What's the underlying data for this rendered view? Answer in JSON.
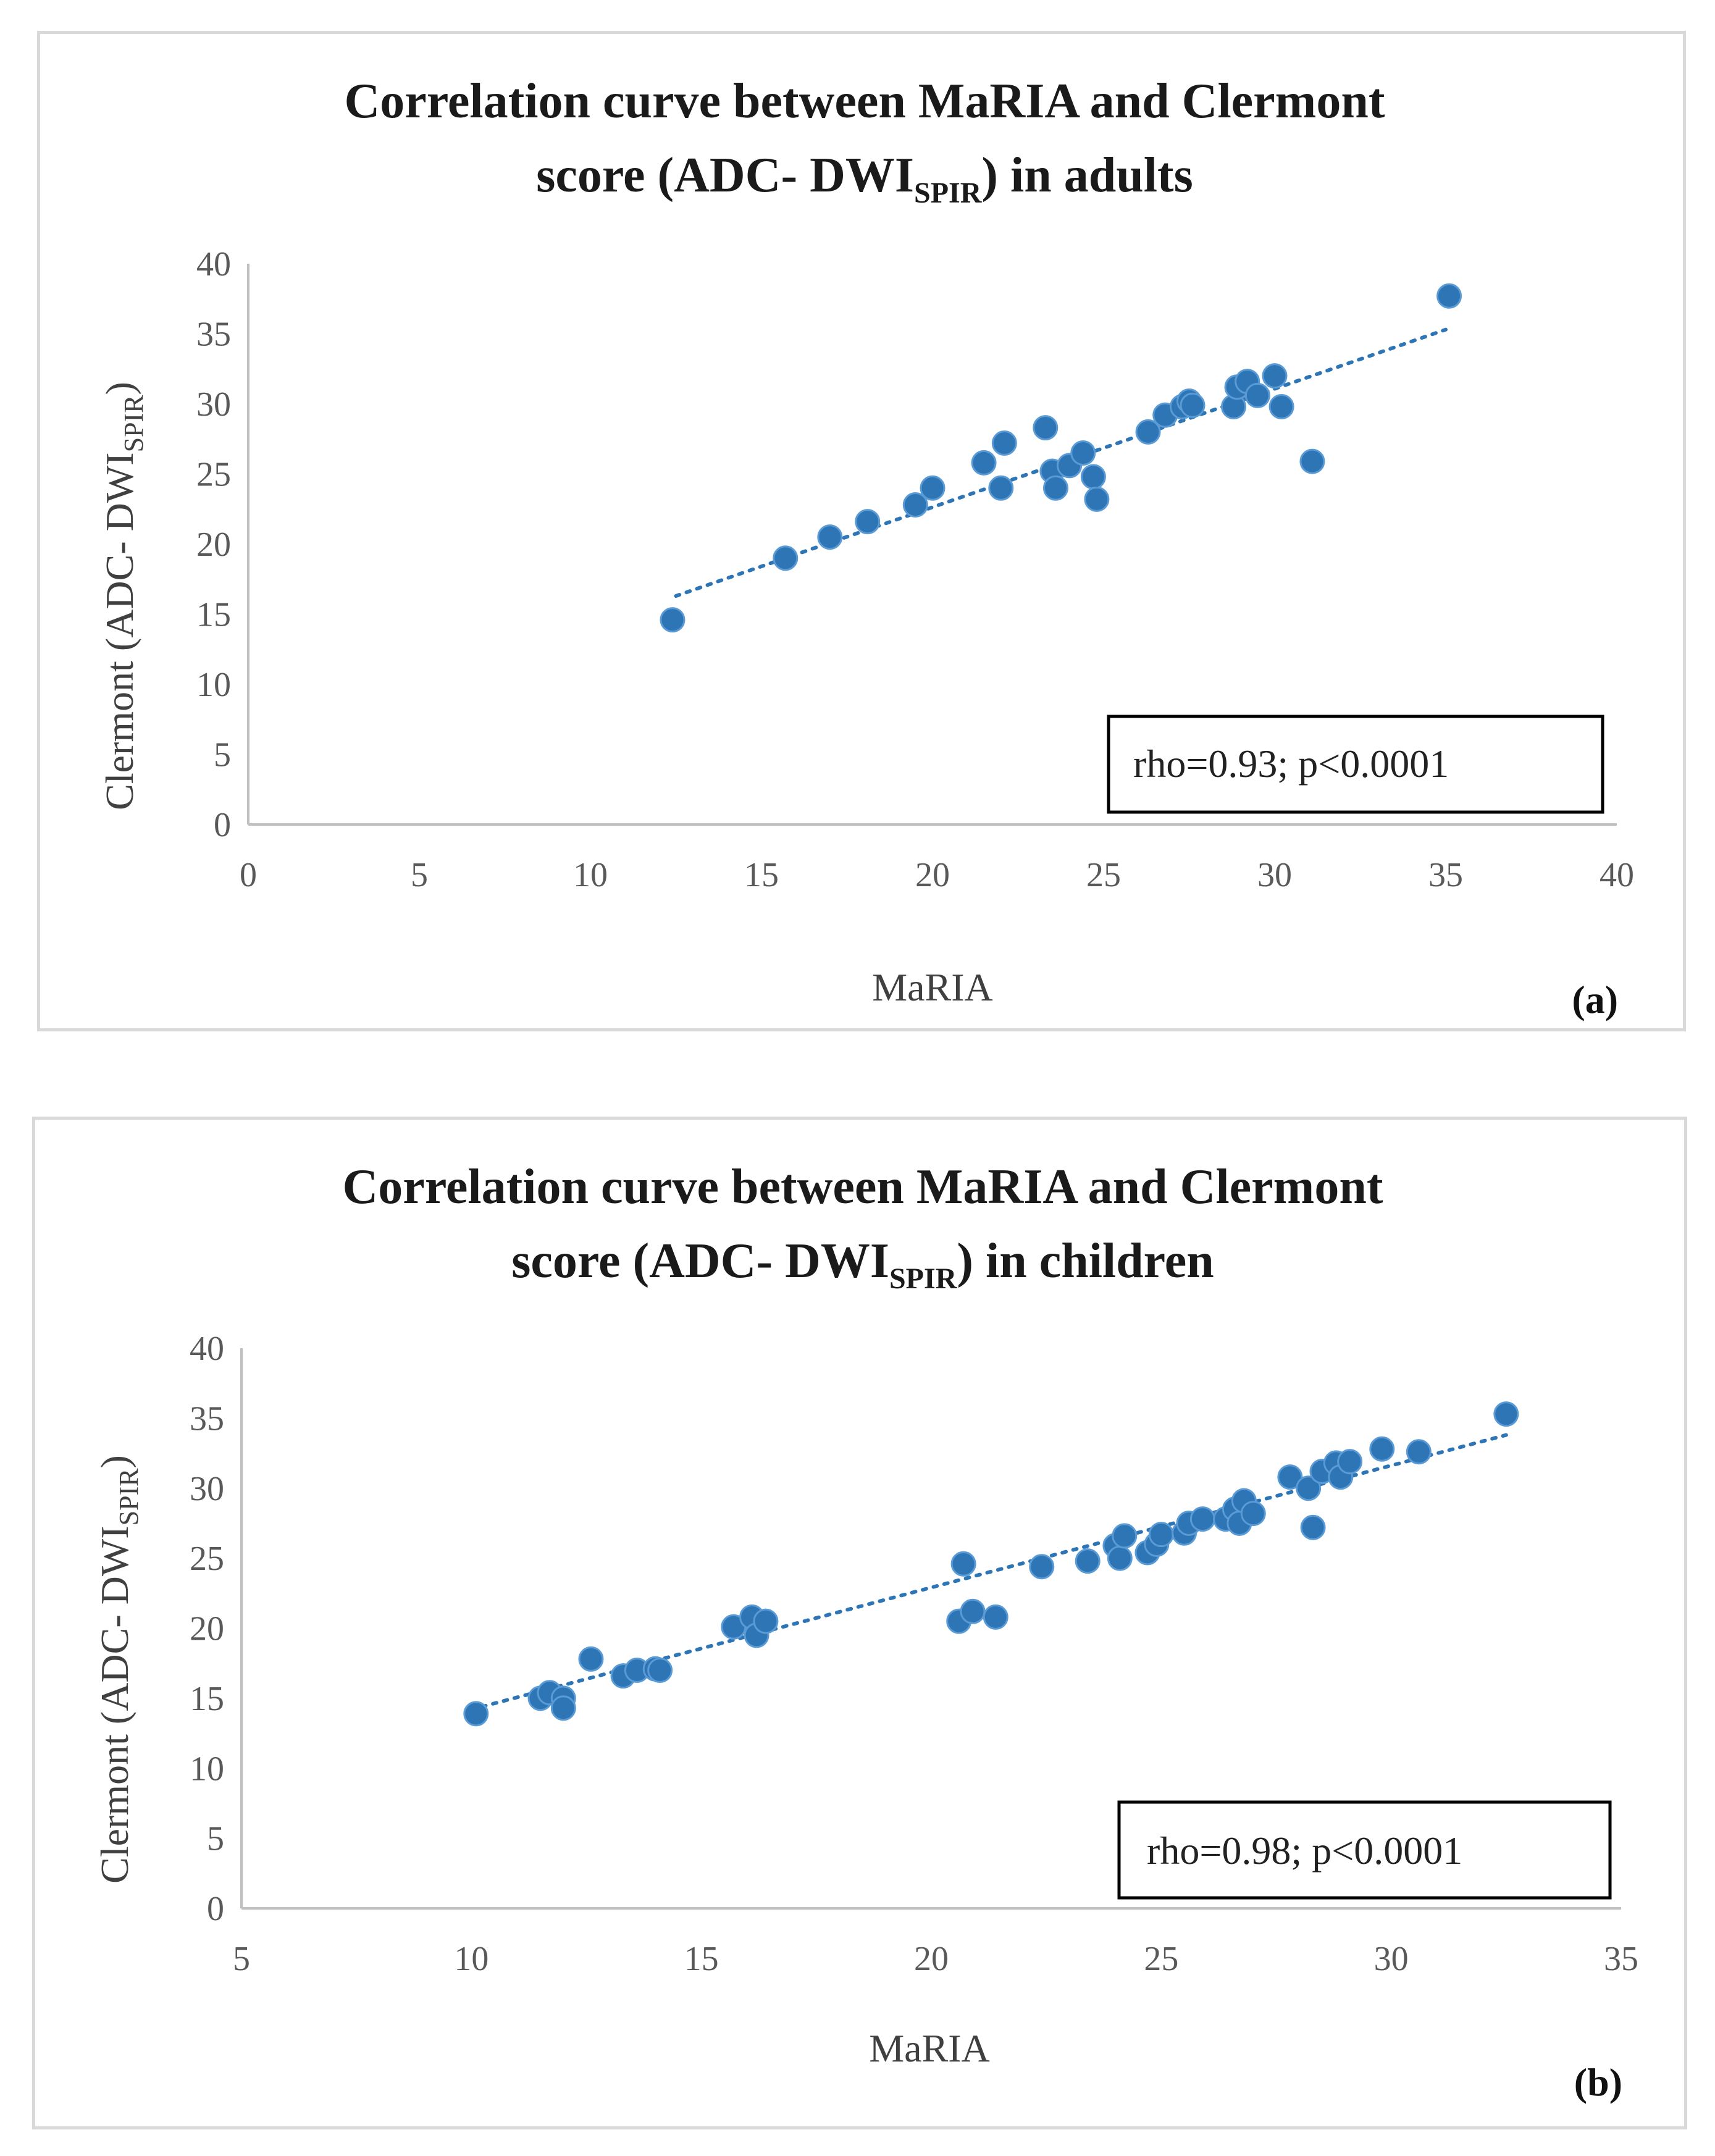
{
  "chart_data": [
    {
      "type": "scatter",
      "title_main": "Correlation curve between MaRIA and Clermont",
      "title_line2_pre": "score (ADC- DWI",
      "title_line2_sub": "SPIR",
      "title_line2_post": ") in adults",
      "xlabel": "MaRIA",
      "ylabel_pre": "Clermont (ADC- DWI",
      "ylabel_sub": "SPIR",
      "ylabel_post": ")",
      "xlim": [
        0,
        40
      ],
      "ylim": [
        0,
        40
      ],
      "xticks": [
        0,
        5,
        10,
        15,
        20,
        25,
        30,
        35,
        40
      ],
      "yticks": [
        0,
        5,
        10,
        15,
        20,
        25,
        30,
        35,
        40
      ],
      "annotation": "rho=0.93; p<0.0001",
      "panel_label": "(a)",
      "trendline": {
        "style": "dotted-linear",
        "x": [
          12.5,
          35
        ],
        "y": [
          16.3,
          35.3
        ]
      },
      "series": [
        {
          "name": "adults",
          "color": "#2e75b6",
          "points": [
            [
              12.4,
              14.6
            ],
            [
              15.7,
              19.0
            ],
            [
              17.0,
              20.5
            ],
            [
              18.1,
              21.6
            ],
            [
              19.5,
              22.8
            ],
            [
              20.0,
              24.0
            ],
            [
              21.5,
              25.8
            ],
            [
              22.0,
              24.0
            ],
            [
              22.1,
              27.2
            ],
            [
              23.3,
              28.3
            ],
            [
              23.5,
              25.2
            ],
            [
              23.6,
              24.0
            ],
            [
              24.0,
              25.6
            ],
            [
              24.4,
              26.5
            ],
            [
              24.7,
              24.8
            ],
            [
              24.8,
              23.2
            ],
            [
              26.3,
              28.0
            ],
            [
              26.8,
              29.2
            ],
            [
              27.3,
              29.8
            ],
            [
              27.5,
              30.2
            ],
            [
              27.6,
              29.9
            ],
            [
              28.8,
              29.8
            ],
            [
              28.9,
              31.2
            ],
            [
              29.2,
              31.6
            ],
            [
              29.5,
              30.6
            ],
            [
              30.0,
              32.0
            ],
            [
              30.2,
              29.8
            ],
            [
              31.1,
              25.9
            ],
            [
              35.1,
              37.7
            ]
          ]
        }
      ]
    },
    {
      "type": "scatter",
      "title_main": "Correlation curve between MaRIA and Clermont",
      "title_line2_pre": "score (ADC- DWI",
      "title_line2_sub": "SPIR",
      "title_line2_post": ") in children",
      "xlabel": "MaRIA",
      "ylabel_pre": "Clermont (ADC- DWI",
      "ylabel_sub": "SPIR",
      "ylabel_post": ")",
      "xlim": [
        5,
        35
      ],
      "ylim": [
        0,
        40
      ],
      "xticks": [
        5,
        10,
        15,
        20,
        25,
        30,
        35
      ],
      "yticks": [
        0,
        5,
        10,
        15,
        20,
        25,
        30,
        35,
        40
      ],
      "annotation": "rho=0.98; p<0.0001",
      "panel_label": "(b)",
      "trendline": {
        "style": "dotted-linear",
        "x": [
          10,
          32.5
        ],
        "y": [
          14.2,
          33.8
        ]
      },
      "series": [
        {
          "name": "children",
          "color": "#2e75b6",
          "points": [
            [
              10.1,
              13.9
            ],
            [
              11.5,
              15.0
            ],
            [
              11.7,
              15.4
            ],
            [
              12.0,
              15.0
            ],
            [
              12.0,
              14.3
            ],
            [
              12.6,
              17.8
            ],
            [
              13.3,
              16.6
            ],
            [
              13.6,
              17.0
            ],
            [
              14.0,
              17.1
            ],
            [
              14.1,
              17.0
            ],
            [
              15.7,
              20.1
            ],
            [
              16.1,
              20.8
            ],
            [
              16.2,
              19.5
            ],
            [
              16.4,
              20.5
            ],
            [
              20.6,
              20.5
            ],
            [
              20.7,
              24.6
            ],
            [
              20.9,
              21.2
            ],
            [
              21.4,
              20.8
            ],
            [
              22.4,
              24.4
            ],
            [
              23.4,
              24.8
            ],
            [
              24.0,
              25.9
            ],
            [
              24.1,
              25.0
            ],
            [
              24.2,
              26.6
            ],
            [
              24.7,
              25.4
            ],
            [
              24.9,
              26.0
            ],
            [
              25.0,
              26.7
            ],
            [
              25.5,
              26.8
            ],
            [
              25.6,
              27.5
            ],
            [
              25.9,
              27.8
            ],
            [
              26.4,
              27.8
            ],
            [
              26.6,
              28.5
            ],
            [
              26.7,
              27.5
            ],
            [
              26.8,
              29.1
            ],
            [
              27.0,
              28.2
            ],
            [
              27.8,
              30.8
            ],
            [
              28.2,
              30.0
            ],
            [
              28.3,
              27.2
            ],
            [
              28.5,
              31.2
            ],
            [
              28.8,
              31.8
            ],
            [
              28.9,
              30.8
            ],
            [
              29.1,
              31.9
            ],
            [
              29.8,
              32.8
            ],
            [
              30.6,
              32.6
            ],
            [
              32.5,
              35.3
            ]
          ]
        }
      ]
    }
  ]
}
